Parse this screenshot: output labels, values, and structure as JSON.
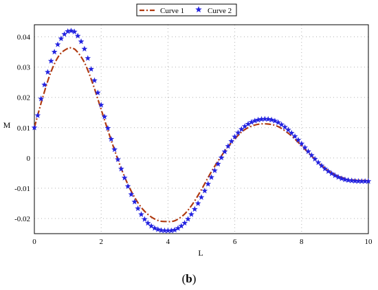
{
  "caption": {
    "open": "(",
    "letter": "b",
    "close": ")"
  },
  "chart_data": {
    "type": "line",
    "title": "",
    "xlabel": "L",
    "ylabel": "M",
    "xlim": [
      0,
      10
    ],
    "ylim": [
      -0.025,
      0.044
    ],
    "grid": true,
    "legend_position": "top-center",
    "x_ticks": [
      0,
      2,
      4,
      6,
      8,
      10
    ],
    "x_tick_labels": [
      "0",
      "2",
      "4",
      "6",
      "8",
      "10"
    ],
    "y_ticks": [
      -0.02,
      -0.01,
      0,
      0.01,
      0.02,
      0.03,
      0.04
    ],
    "y_tick_labels": [
      "-0.02",
      "-0.01",
      "0",
      "0.01",
      "0.02",
      "0.03",
      "0.04"
    ],
    "x": [
      0,
      0.25,
      0.5,
      0.75,
      1.0,
      1.1,
      1.25,
      1.5,
      1.75,
      2.0,
      2.25,
      2.5,
      2.75,
      3.0,
      3.25,
      3.5,
      3.75,
      4.0,
      4.1,
      4.25,
      4.5,
      4.75,
      5.0,
      5.25,
      5.5,
      5.75,
      6.0,
      6.25,
      6.5,
      6.75,
      7.0,
      7.25,
      7.5,
      7.75,
      8.0,
      8.25,
      8.5,
      8.75,
      9.0,
      9.25,
      9.5,
      9.75,
      10.0
    ],
    "series": [
      {
        "name": "Curve 1",
        "style": "dash-dot",
        "color": "#b03a10",
        "values": [
          0.01,
          0.02,
          0.0285,
          0.034,
          0.0362,
          0.0363,
          0.0355,
          0.0315,
          0.0245,
          0.016,
          0.0075,
          -0.0005,
          -0.0075,
          -0.013,
          -0.017,
          -0.0195,
          -0.0208,
          -0.021,
          -0.021,
          -0.0205,
          -0.0185,
          -0.015,
          -0.0105,
          -0.0055,
          -0.001,
          0.003,
          0.0063,
          0.009,
          0.0105,
          0.0112,
          0.0112,
          0.0106,
          0.009,
          0.0068,
          0.004,
          0.0012,
          -0.0015,
          -0.0038,
          -0.0055,
          -0.0066,
          -0.0072,
          -0.0074,
          -0.0075
        ]
      },
      {
        "name": "Curve 2",
        "style": "star-markers",
        "color": "#2323e0",
        "values": [
          0.01,
          0.022,
          0.032,
          0.0385,
          0.0418,
          0.042,
          0.041,
          0.036,
          0.0275,
          0.0175,
          0.008,
          -0.0005,
          -0.008,
          -0.0145,
          -0.0195,
          -0.0225,
          -0.0238,
          -0.024,
          -0.024,
          -0.0235,
          -0.0215,
          -0.0178,
          -0.013,
          -0.0075,
          -0.002,
          0.003,
          0.007,
          0.01,
          0.0118,
          0.0127,
          0.0128,
          0.012,
          0.0102,
          0.0077,
          0.0047,
          0.0015,
          -0.0015,
          -0.004,
          -0.0058,
          -0.007,
          -0.0075,
          -0.0077,
          -0.0077
        ]
      }
    ]
  }
}
